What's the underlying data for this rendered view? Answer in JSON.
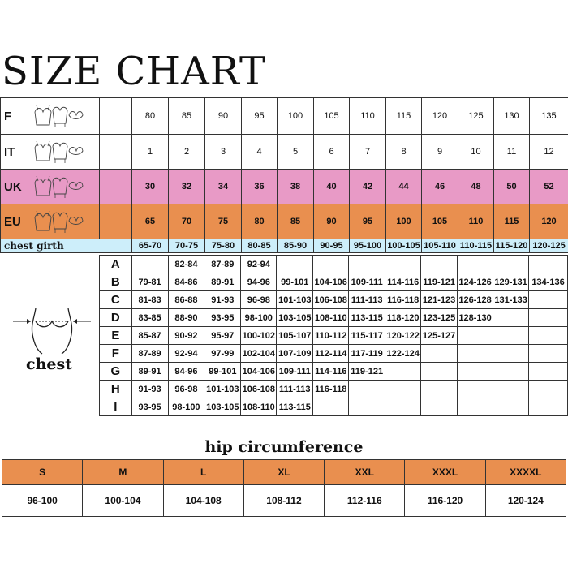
{
  "title": "SIZE CHART",
  "size_rows": [
    {
      "label": "F",
      "values": [
        "80",
        "85",
        "90",
        "95",
        "100",
        "105",
        "110",
        "115",
        "120",
        "125",
        "130",
        "135"
      ],
      "style": "plain"
    },
    {
      "label": "IT",
      "values": [
        "1",
        "2",
        "3",
        "4",
        "5",
        "6",
        "7",
        "8",
        "9",
        "10",
        "11",
        "12"
      ],
      "style": "plain"
    },
    {
      "label": "UK",
      "values": [
        "30",
        "32",
        "34",
        "36",
        "38",
        "40",
        "42",
        "44",
        "46",
        "48",
        "50",
        "52"
      ],
      "style": "pink",
      "color": "#e89ac6"
    },
    {
      "label": "EU",
      "values": [
        "65",
        "70",
        "75",
        "80",
        "85",
        "90",
        "95",
        "100",
        "105",
        "110",
        "115",
        "120"
      ],
      "style": "orange",
      "color": "#e98f4f"
    }
  ],
  "chest_girth": {
    "label": "chest girth",
    "values": [
      "65-70",
      "70-75",
      "75-80",
      "80-85",
      "85-90",
      "90-95",
      "95-100",
      "100-105",
      "105-110",
      "110-115",
      "115-120",
      "120-125"
    ],
    "color": "#cdeefa"
  },
  "chest_label": "chest",
  "cup_rows": [
    {
      "cup": "A",
      "values": [
        "",
        "82-84",
        "87-89",
        "92-94",
        "",
        "",
        "",
        "",
        "",
        "",
        "",
        ""
      ]
    },
    {
      "cup": "B",
      "values": [
        "79-81",
        "84-86",
        "89-91",
        "94-96",
        "99-101",
        "104-106",
        "109-111",
        "114-116",
        "119-121",
        "124-126",
        "129-131",
        "134-136"
      ]
    },
    {
      "cup": "C",
      "values": [
        "81-83",
        "86-88",
        "91-93",
        "96-98",
        "101-103",
        "106-108",
        "111-113",
        "116-118",
        "121-123",
        "126-128",
        "131-133",
        ""
      ]
    },
    {
      "cup": "D",
      "values": [
        "83-85",
        "88-90",
        "93-95",
        "98-100",
        "103-105",
        "108-110",
        "113-115",
        "118-120",
        "123-125",
        "128-130",
        "",
        ""
      ]
    },
    {
      "cup": "E",
      "values": [
        "85-87",
        "90-92",
        "95-97",
        "100-102",
        "105-107",
        "110-112",
        "115-117",
        "120-122",
        "125-127",
        "",
        "",
        ""
      ]
    },
    {
      "cup": "F",
      "values": [
        "87-89",
        "92-94",
        "97-99",
        "102-104",
        "107-109",
        "112-114",
        "117-119",
        "122-124",
        "",
        "",
        "",
        ""
      ]
    },
    {
      "cup": "G",
      "values": [
        "89-91",
        "94-96",
        "99-101",
        "104-106",
        "109-111",
        "114-116",
        "119-121",
        "",
        "",
        "",
        "",
        ""
      ]
    },
    {
      "cup": "H",
      "values": [
        "91-93",
        "96-98",
        "101-103",
        "106-108",
        "111-113",
        "116-118",
        "",
        "",
        "",
        "",
        "",
        ""
      ]
    },
    {
      "cup": "I",
      "values": [
        "93-95",
        "98-100",
        "103-105",
        "108-110",
        "113-115",
        "",
        "",
        "",
        "",
        "",
        "",
        ""
      ]
    }
  ],
  "hip": {
    "title": "hip circumference",
    "sizes": [
      "S",
      "M",
      "L",
      "XL",
      "XXL",
      "XXXL",
      "XXXXL"
    ],
    "values": [
      "96-100",
      "100-104",
      "104-108",
      "108-112",
      "112-116",
      "116-120",
      "120-124"
    ],
    "header_color": "#e98f4f"
  }
}
